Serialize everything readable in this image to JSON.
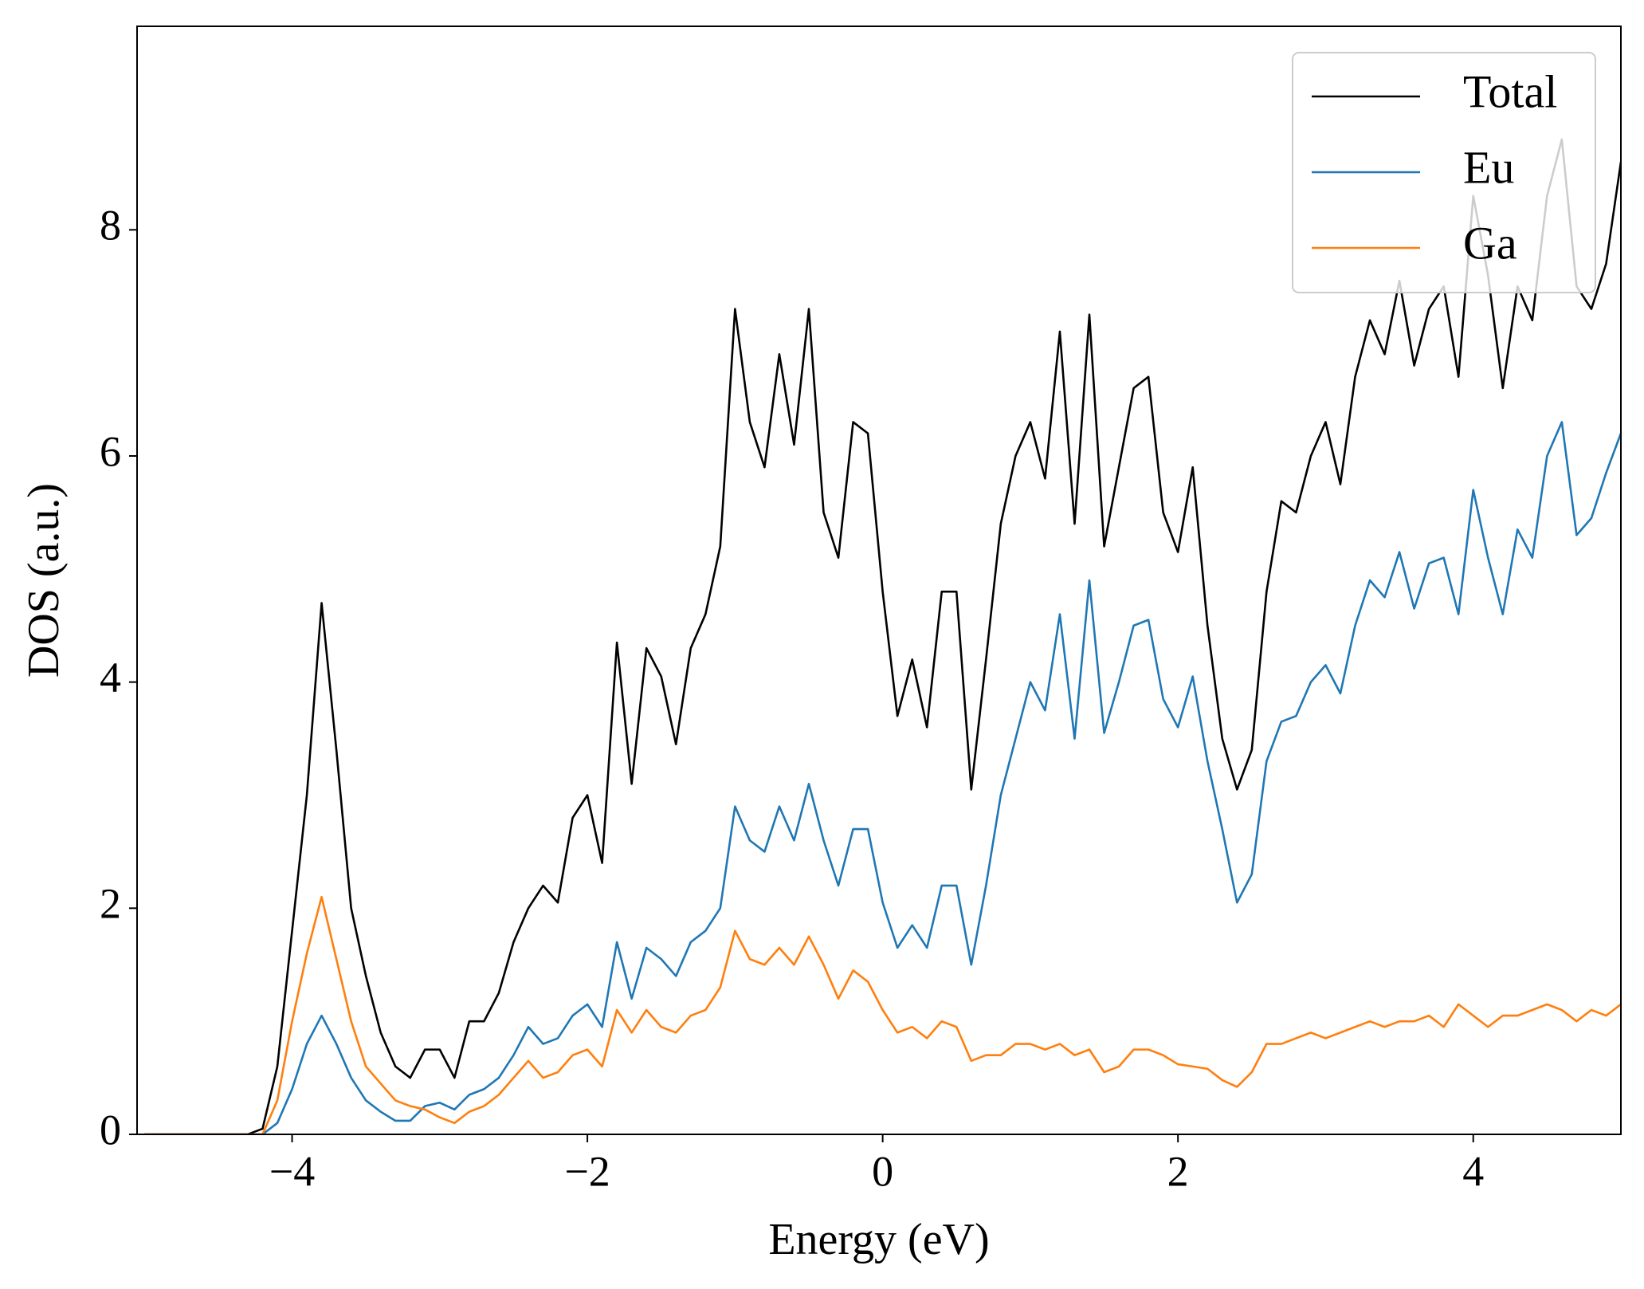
{
  "chart_data": {
    "type": "line",
    "xlabel": "Energy (eV)",
    "ylabel": "DOS (a.u.)",
    "x": [
      -5.0,
      -4.9,
      -4.8,
      -4.7,
      -4.6,
      -4.5,
      -4.4,
      -4.3,
      -4.2,
      -4.1,
      -4.0,
      -3.9,
      -3.8,
      -3.7,
      -3.6,
      -3.5,
      -3.4,
      -3.3,
      -3.2,
      -3.1,
      -3.0,
      -2.9,
      -2.8,
      -2.7,
      -2.6,
      -2.5,
      -2.4,
      -2.3,
      -2.2,
      -2.1,
      -2.0,
      -1.9,
      -1.8,
      -1.7,
      -1.6,
      -1.5,
      -1.4,
      -1.3,
      -1.2,
      -1.1,
      -1.0,
      -0.9,
      -0.8,
      -0.7,
      -0.6,
      -0.5,
      -0.4,
      -0.3,
      -0.2,
      -0.1,
      0.0,
      0.1,
      0.2,
      0.3,
      0.4,
      0.5,
      0.6,
      0.7,
      0.8,
      0.9,
      1.0,
      1.1,
      1.2,
      1.3,
      1.4,
      1.5,
      1.6,
      1.7,
      1.8,
      1.9,
      2.0,
      2.1,
      2.2,
      2.3,
      2.4,
      2.5,
      2.6,
      2.7,
      2.8,
      2.9,
      3.0,
      3.1,
      3.2,
      3.3,
      3.4,
      3.5,
      3.6,
      3.7,
      3.8,
      3.9,
      4.0,
      4.1,
      4.2,
      4.3,
      4.4,
      4.5,
      4.6,
      4.7,
      4.8,
      4.9,
      5.0
    ],
    "series": [
      {
        "name": "Total",
        "color": "#000000",
        "values": [
          0,
          0,
          0,
          0,
          0,
          0,
          0,
          0,
          0.05,
          0.6,
          1.8,
          3.0,
          4.7,
          3.4,
          2.0,
          1.4,
          0.9,
          0.6,
          0.5,
          0.75,
          0.75,
          0.5,
          1.0,
          1.0,
          1.25,
          1.7,
          2.0,
          2.2,
          2.05,
          2.8,
          3.0,
          2.4,
          4.35,
          3.1,
          4.3,
          4.05,
          3.45,
          4.3,
          4.6,
          5.2,
          7.3,
          6.3,
          5.9,
          6.9,
          6.1,
          7.3,
          5.5,
          5.1,
          6.3,
          6.2,
          4.8,
          3.7,
          4.2,
          3.6,
          4.8,
          4.8,
          3.05,
          4.2,
          5.4,
          6.0,
          6.3,
          5.8,
          7.1,
          5.4,
          7.25,
          5.2,
          5.9,
          6.6,
          6.7,
          5.5,
          5.15,
          5.9,
          4.5,
          3.5,
          3.05,
          3.4,
          4.8,
          5.6,
          5.5,
          6.0,
          6.3,
          5.75,
          6.7,
          7.2,
          6.9,
          7.55,
          6.8,
          7.3,
          7.5,
          6.7,
          8.3,
          7.6,
          6.6,
          7.5,
          7.2,
          8.3,
          8.8,
          7.5,
          7.3,
          7.7,
          8.6
        ]
      },
      {
        "name": "Eu",
        "color": "#1f77b4",
        "values": [
          0,
          0,
          0,
          0,
          0,
          0,
          0,
          0,
          0,
          0.1,
          0.4,
          0.8,
          1.05,
          0.8,
          0.5,
          0.3,
          0.2,
          0.12,
          0.12,
          0.25,
          0.28,
          0.22,
          0.35,
          0.4,
          0.5,
          0.7,
          0.95,
          0.8,
          0.85,
          1.05,
          1.15,
          0.95,
          1.7,
          1.2,
          1.65,
          1.55,
          1.4,
          1.7,
          1.8,
          2.0,
          2.9,
          2.6,
          2.5,
          2.9,
          2.6,
          3.1,
          2.6,
          2.2,
          2.7,
          2.7,
          2.05,
          1.65,
          1.85,
          1.65,
          2.2,
          2.2,
          1.5,
          2.2,
          3.0,
          3.5,
          4.0,
          3.75,
          4.6,
          3.5,
          4.9,
          3.55,
          4.0,
          4.5,
          4.55,
          3.85,
          3.6,
          4.05,
          3.3,
          2.7,
          2.05,
          2.3,
          3.3,
          3.65,
          3.7,
          4.0,
          4.15,
          3.9,
          4.5,
          4.9,
          4.75,
          5.15,
          4.65,
          5.05,
          5.1,
          4.6,
          5.7,
          5.1,
          4.6,
          5.35,
          5.1,
          6.0,
          6.3,
          5.3,
          5.45,
          5.85,
          6.2
        ]
      },
      {
        "name": "Ga",
        "color": "#ff7f0e",
        "values": [
          0,
          0,
          0,
          0,
          0,
          0,
          0,
          0,
          0,
          0.3,
          1.0,
          1.6,
          2.1,
          1.55,
          1.0,
          0.6,
          0.45,
          0.3,
          0.25,
          0.22,
          0.15,
          0.1,
          0.2,
          0.25,
          0.35,
          0.5,
          0.65,
          0.5,
          0.55,
          0.7,
          0.75,
          0.6,
          1.1,
          0.9,
          1.1,
          0.95,
          0.9,
          1.05,
          1.1,
          1.3,
          1.8,
          1.55,
          1.5,
          1.65,
          1.5,
          1.75,
          1.5,
          1.2,
          1.45,
          1.35,
          1.1,
          0.9,
          0.95,
          0.85,
          1.0,
          0.95,
          0.65,
          0.7,
          0.7,
          0.8,
          0.8,
          0.75,
          0.8,
          0.7,
          0.75,
          0.55,
          0.6,
          0.75,
          0.75,
          0.7,
          0.62,
          0.6,
          0.58,
          0.48,
          0.42,
          0.55,
          0.8,
          0.8,
          0.85,
          0.9,
          0.85,
          0.9,
          0.95,
          1.0,
          0.95,
          1.0,
          1.0,
          1.05,
          0.95,
          1.15,
          1.05,
          0.95,
          1.05,
          1.05,
          1.1,
          1.15,
          1.1,
          1.0,
          1.1,
          1.05,
          1.15
        ]
      }
    ],
    "xlim": [
      -5.05,
      5
    ],
    "ylim": [
      0,
      9.8
    ],
    "xticks": [
      {
        "value": -4,
        "label": "−4"
      },
      {
        "value": -2,
        "label": "−2"
      },
      0,
      2,
      4
    ],
    "yticks": [
      0,
      2,
      4,
      6,
      8
    ],
    "legend": "upper right",
    "grid": false
  }
}
